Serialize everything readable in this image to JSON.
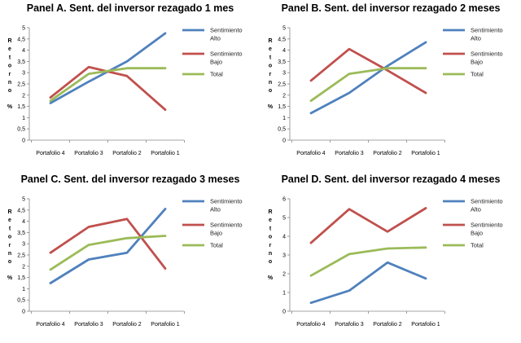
{
  "colors": {
    "alto": "#4f81bd",
    "bajo": "#c0504d",
    "total": "#9bbb59"
  },
  "chart_data": [
    {
      "type": "line",
      "title": "Panel A. Sent. del inversor rezagado 1 mes",
      "ylabel": "Retorno %",
      "ylim": [
        0,
        5
      ],
      "yticks": [
        "0",
        "0,5",
        "1",
        "1,5",
        "2",
        "2,5",
        "3",
        "3,5",
        "4",
        "4,5",
        "5"
      ],
      "categories": [
        "Portafolio 4",
        "Portafolio 3",
        "Portafolio 2",
        "Portafolio 1"
      ],
      "series": [
        {
          "name": "Sentimiento Alto",
          "values": [
            1.65,
            2.6,
            3.5,
            4.75
          ]
        },
        {
          "name": "Sentimiento Bajo",
          "values": [
            1.9,
            3.25,
            2.85,
            1.35
          ]
        },
        {
          "name": "Total",
          "values": [
            1.75,
            2.95,
            3.2,
            3.2
          ]
        }
      ]
    },
    {
      "type": "line",
      "title": "Panel B. Sent. del inversor rezagado 2 meses",
      "ylabel": "Retorno %",
      "ylim": [
        0,
        5
      ],
      "yticks": [
        "0",
        "0,5",
        "1",
        "1,5",
        "2",
        "2,5",
        "3",
        "3,5",
        "4",
        "4,5",
        "5"
      ],
      "categories": [
        "Portafolio 4",
        "Portafolio 3",
        "Portafolio 2",
        "Portafolio 1"
      ],
      "series": [
        {
          "name": "Sentimiento Alto",
          "values": [
            1.2,
            2.1,
            3.3,
            4.35
          ]
        },
        {
          "name": "Sentimiento Bajo",
          "values": [
            2.65,
            4.05,
            3.1,
            2.1
          ]
        },
        {
          "name": "Total",
          "values": [
            1.75,
            2.95,
            3.2,
            3.2
          ]
        }
      ]
    },
    {
      "type": "line",
      "title": "Panel C. Sent. del inversor rezagado 3 meses",
      "ylabel": "Retorno %",
      "ylim": [
        0,
        5
      ],
      "yticks": [
        "0",
        "0,5",
        "1",
        "1,5",
        "2",
        "2,5",
        "3",
        "3,5",
        "4",
        "4,5",
        "5"
      ],
      "categories": [
        "Portafolio 4",
        "Portafolio 3",
        "Portafolio 2",
        "Portafolio 1"
      ],
      "series": [
        {
          "name": "Sentimiento Alto",
          "values": [
            1.25,
            2.3,
            2.6,
            4.55
          ]
        },
        {
          "name": "Sentimiento Bajo",
          "values": [
            2.6,
            3.75,
            4.1,
            1.9
          ]
        },
        {
          "name": "Total",
          "values": [
            1.85,
            2.95,
            3.25,
            3.35
          ]
        }
      ]
    },
    {
      "type": "line",
      "title": "Panel D. Sent. del inversor rezagado 4 meses",
      "ylabel": "Retorno %",
      "ylim": [
        0,
        6
      ],
      "yticks": [
        "0",
        "1",
        "2",
        "3",
        "4",
        "5",
        "6"
      ],
      "categories": [
        "Portafolio 4",
        "Portafolio 3",
        "Portafolio 2",
        "Portafolio 1"
      ],
      "series": [
        {
          "name": "Sentimiento Alto",
          "values": [
            0.45,
            1.1,
            2.6,
            1.75
          ]
        },
        {
          "name": "Sentimiento Bajo",
          "values": [
            3.65,
            5.45,
            4.25,
            5.5
          ]
        },
        {
          "name": "Total",
          "values": [
            1.9,
            3.05,
            3.35,
            3.4
          ]
        }
      ]
    }
  ]
}
